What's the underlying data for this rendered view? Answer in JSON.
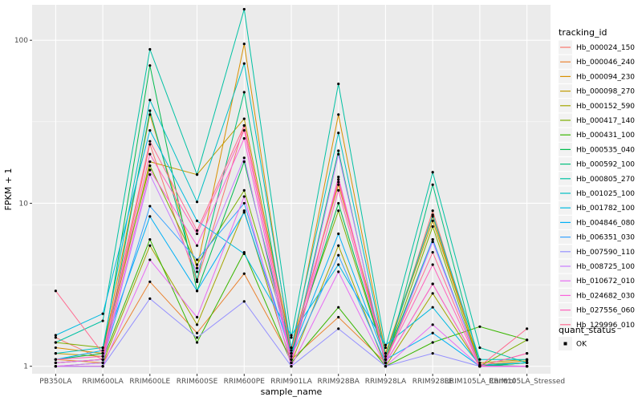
{
  "chart_data": {
    "type": "line",
    "xlabel": "sample_name",
    "ylabel": "FPKM + 1",
    "y_scale": "log10",
    "ylim": [
      0.9,
      165
    ],
    "y_ticks": [
      1,
      10,
      100
    ],
    "y_tick_labels": [
      "1",
      "10",
      "100"
    ],
    "grid": true,
    "legend_placement": "right",
    "categories": [
      "PB350LA",
      "RRIM600LA",
      "RRIM600LE",
      "RRIM600SE",
      "RRIM600PE",
      "RRIM901LA",
      "RRIM928BA",
      "RRIM928LA",
      "RRIM928LE",
      "RRIM105LA_Control",
      "RRIM105LA_Stressed"
    ],
    "legend_title": "tracking_id",
    "series": [
      {
        "name": "Hb_000024_150",
        "color": "#F8766D",
        "values": [
          1.5,
          1.1,
          23,
          3.3,
          30,
          1.2,
          14,
          1.1,
          9,
          1.0,
          1.2
        ]
      },
      {
        "name": "Hb_000046_240",
        "color": "#EA8331",
        "values": [
          1.1,
          1.05,
          3.3,
          1.6,
          3.7,
          1.1,
          2.0,
          1.05,
          3.2,
          1.0,
          1.05
        ]
      },
      {
        "name": "Hb_000094_230",
        "color": "#D89000",
        "values": [
          1.3,
          1.2,
          35,
          4.0,
          95,
          1.2,
          35,
          1.2,
          8.3,
          1.02,
          1.08
        ]
      },
      {
        "name": "Hb_000098_270",
        "color": "#C09B00",
        "values": [
          1.2,
          1.15,
          18,
          15,
          33,
          1.3,
          13,
          1.2,
          7.8,
          1.05,
          1.1
        ]
      },
      {
        "name": "Hb_000152_590",
        "color": "#A3A500",
        "values": [
          1.0,
          1.05,
          5.5,
          1.8,
          9,
          1.05,
          5.5,
          1.0,
          2.8,
          1.0,
          1.05
        ]
      },
      {
        "name": "Hb_000417_140",
        "color": "#7CAE00",
        "values": [
          1.4,
          1.3,
          17,
          4.2,
          12,
          1.3,
          9,
          1.1,
          7.2,
          1.0,
          1.45
        ]
      },
      {
        "name": "Hb_000431_100",
        "color": "#39B600",
        "values": [
          1.05,
          1.1,
          6.0,
          1.4,
          5.0,
          1.05,
          2.3,
          1.0,
          1.4,
          1.75,
          1.45
        ]
      },
      {
        "name": "Hb_000535_040",
        "color": "#00BB4E",
        "values": [
          1.1,
          1.2,
          70,
          2.9,
          18,
          1.2,
          10,
          1.1,
          6.0,
          1.0,
          1.05
        ]
      },
      {
        "name": "Hb_000592_100",
        "color": "#00BF7D",
        "values": [
          1.0,
          1.0,
          37,
          3.4,
          48,
          1.1,
          21,
          1.0,
          13,
          1.02,
          1.0
        ]
      },
      {
        "name": "Hb_000805_270",
        "color": "#00C1A3",
        "values": [
          1.4,
          1.9,
          88,
          15,
          155,
          1.5,
          54,
          1.3,
          15.5,
          1.3,
          1.05
        ]
      },
      {
        "name": "Hb_001025_100",
        "color": "#00BFC4",
        "values": [
          1.2,
          1.3,
          43,
          10.2,
          72,
          1.3,
          27,
          1.15,
          8.5,
          1.1,
          1.1
        ]
      },
      {
        "name": "Hb_001782_100",
        "color": "#00BAE0",
        "values": [
          1.55,
          2.1,
          28,
          7.8,
          4.9,
          1.55,
          4.2,
          1.35,
          2.3,
          1.02,
          1.05
        ]
      },
      {
        "name": "Hb_004846_080",
        "color": "#00B0F6",
        "values": [
          1.1,
          1.25,
          8.3,
          2.9,
          8.8,
          1.2,
          6.5,
          1.1,
          1.6,
          1.0,
          1.0
        ]
      },
      {
        "name": "Hb_006351_030",
        "color": "#35A2FF",
        "values": [
          1.05,
          1.1,
          9.6,
          4.5,
          10,
          1.15,
          4.8,
          1.05,
          6.0,
          1.0,
          1.0
        ]
      },
      {
        "name": "Hb_007590_110",
        "color": "#9590FF",
        "values": [
          1.0,
          1.0,
          2.6,
          1.5,
          2.5,
          1.0,
          1.7,
          1.0,
          1.2,
          1.0,
          1.0
        ]
      },
      {
        "name": "Hb_008725_100",
        "color": "#C77CFF",
        "values": [
          1.0,
          1.05,
          15,
          3.8,
          19,
          1.05,
          20,
          1.05,
          5.8,
          1.0,
          1.0
        ]
      },
      {
        "name": "Hb_010672_010",
        "color": "#E76BF3",
        "values": [
          1.0,
          1.0,
          4.5,
          2.0,
          11,
          1.0,
          3.8,
          1.0,
          1.8,
          1.0,
          1.0
        ]
      },
      {
        "name": "Hb_024682_030",
        "color": "#FA62DB",
        "values": [
          1.05,
          1.1,
          16,
          5.5,
          25,
          1.05,
          14.5,
          1.05,
          3.2,
          1.0,
          1.0
        ]
      },
      {
        "name": "Hb_027556_060",
        "color": "#FF62BC",
        "values": [
          1.1,
          1.15,
          20,
          6.5,
          28,
          1.1,
          12,
          1.1,
          4.2,
          1.0,
          1.2
        ]
      },
      {
        "name": "Hb_129996_010",
        "color": "#FF6C91",
        "values": [
          2.9,
          1.2,
          24,
          6.8,
          30,
          1.25,
          13.5,
          1.1,
          5.0,
          1.0,
          1.7
        ]
      }
    ],
    "quant_status": {
      "title": "quant_status",
      "label": "OK"
    }
  },
  "colors": {
    "panel_background": "#EBEBEB",
    "grid_major": "#FFFFFF",
    "point": "#000000"
  }
}
